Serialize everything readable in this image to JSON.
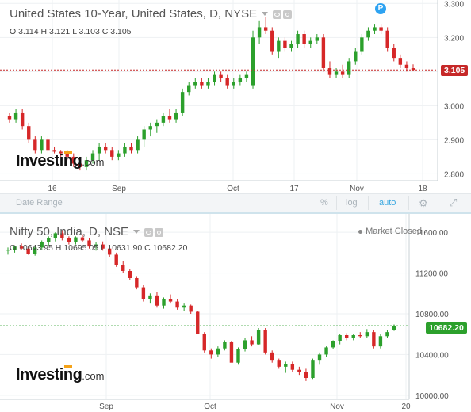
{
  "top": {
    "title": "United States 10-Year, United States, D, NYSE",
    "ohlc": "O 3.114  H 3.121  L 3.103  C 3.105",
    "price_tag": "3.105",
    "badge": "P",
    "y_ticks": [
      "3.300",
      "3.200",
      "3.100",
      "3.000",
      "2.900",
      "2.800"
    ],
    "x_ticks": [
      "16",
      "Sep",
      "Oct",
      "17",
      "Nov",
      "18"
    ],
    "colors": {
      "up": "#2ca02c",
      "down": "#d62728",
      "price_line": "#c62828"
    },
    "candles": [
      [
        2.97,
        2.98,
        2.95,
        2.96
      ],
      [
        2.96,
        2.99,
        2.95,
        2.98
      ],
      [
        2.98,
        2.99,
        2.93,
        2.94
      ],
      [
        2.94,
        2.95,
        2.89,
        2.9
      ],
      [
        2.9,
        2.91,
        2.86,
        2.87
      ],
      [
        2.87,
        2.91,
        2.86,
        2.9
      ],
      [
        2.9,
        2.91,
        2.86,
        2.87
      ],
      [
        2.87,
        2.88,
        2.86,
        2.865
      ],
      [
        2.865,
        2.87,
        2.85,
        2.86
      ],
      [
        2.86,
        2.87,
        2.84,
        2.85
      ],
      [
        2.85,
        2.86,
        2.82,
        2.83
      ],
      [
        2.83,
        2.84,
        2.81,
        2.82
      ],
      [
        2.82,
        2.85,
        2.81,
        2.84
      ],
      [
        2.84,
        2.87,
        2.83,
        2.86
      ],
      [
        2.86,
        2.89,
        2.84,
        2.88
      ],
      [
        2.88,
        2.89,
        2.86,
        2.87
      ],
      [
        2.87,
        2.88,
        2.84,
        2.85
      ],
      [
        2.85,
        2.87,
        2.84,
        2.86
      ],
      [
        2.86,
        2.89,
        2.85,
        2.88
      ],
      [
        2.88,
        2.89,
        2.86,
        2.87
      ],
      [
        2.87,
        2.91,
        2.86,
        2.9
      ],
      [
        2.9,
        2.94,
        2.88,
        2.93
      ],
      [
        2.93,
        2.95,
        2.91,
        2.94
      ],
      [
        2.94,
        2.96,
        2.92,
        2.95
      ],
      [
        2.95,
        2.98,
        2.94,
        2.97
      ],
      [
        2.97,
        2.99,
        2.95,
        2.96
      ],
      [
        2.96,
        2.99,
        2.95,
        2.98
      ],
      [
        2.98,
        3.05,
        2.97,
        3.04
      ],
      [
        3.04,
        3.07,
        3.03,
        3.06
      ],
      [
        3.06,
        3.08,
        3.05,
        3.07
      ],
      [
        3.07,
        3.08,
        3.05,
        3.06
      ],
      [
        3.06,
        3.08,
        3.05,
        3.07
      ],
      [
        3.07,
        3.1,
        3.06,
        3.09
      ],
      [
        3.09,
        3.1,
        3.07,
        3.08
      ],
      [
        3.08,
        3.09,
        3.05,
        3.06
      ],
      [
        3.06,
        3.08,
        3.05,
        3.07
      ],
      [
        3.07,
        3.09,
        3.06,
        3.08
      ],
      [
        3.08,
        3.1,
        3.07,
        3.09
      ],
      [
        3.06,
        3.22,
        3.05,
        3.2
      ],
      [
        3.2,
        3.25,
        3.18,
        3.23
      ],
      [
        3.23,
        3.26,
        3.21,
        3.22
      ],
      [
        3.22,
        3.23,
        3.15,
        3.16
      ],
      [
        3.16,
        3.2,
        3.14,
        3.19
      ],
      [
        3.19,
        3.2,
        3.16,
        3.17
      ],
      [
        3.17,
        3.19,
        3.16,
        3.18
      ],
      [
        3.18,
        3.22,
        3.17,
        3.21
      ],
      [
        3.21,
        3.22,
        3.17,
        3.18
      ],
      [
        3.18,
        3.2,
        3.17,
        3.19
      ],
      [
        3.19,
        3.21,
        3.18,
        3.2
      ],
      [
        3.2,
        3.21,
        3.1,
        3.11
      ],
      [
        3.11,
        3.13,
        3.08,
        3.09
      ],
      [
        3.09,
        3.11,
        3.08,
        3.1
      ],
      [
        3.1,
        3.12,
        3.08,
        3.09
      ],
      [
        3.09,
        3.14,
        3.08,
        3.13
      ],
      [
        3.13,
        3.17,
        3.12,
        3.16
      ],
      [
        3.16,
        3.21,
        3.15,
        3.2
      ],
      [
        3.2,
        3.23,
        3.19,
        3.22
      ],
      [
        3.22,
        3.24,
        3.21,
        3.23
      ],
      [
        3.23,
        3.24,
        3.21,
        3.22
      ],
      [
        3.22,
        3.23,
        3.16,
        3.17
      ],
      [
        3.17,
        3.18,
        3.13,
        3.14
      ],
      [
        3.14,
        3.15,
        3.11,
        3.12
      ],
      [
        3.12,
        3.13,
        3.1,
        3.11
      ],
      [
        3.11,
        3.121,
        3.103,
        3.105
      ]
    ]
  },
  "toolbar": {
    "date_range": "Date Range",
    "percent": "%",
    "log": "log",
    "auto": "auto"
  },
  "bottom": {
    "title": "Nifty 50, India, D, NSE",
    "ohlc": "O 10643.95  H 10695.05  L 10631.90  C 10682.20",
    "market_status": "Market Closed",
    "price_tag": "10682.20",
    "y_ticks": [
      "11600.00",
      "11200.00",
      "10800.00",
      "10400.00",
      "10000.00"
    ],
    "x_ticks": [
      "Sep",
      "Oct",
      "Nov",
      "20"
    ],
    "colors": {
      "up": "#2ca02c",
      "down": "#d62728",
      "price_line": "#2ca02c"
    },
    "candles": [
      [
        11420,
        11450,
        11380,
        11430
      ],
      [
        11430,
        11470,
        11400,
        11460
      ],
      [
        11460,
        11490,
        11430,
        11440
      ],
      [
        11440,
        11460,
        11380,
        11390
      ],
      [
        11390,
        11460,
        11370,
        11450
      ],
      [
        11450,
        11520,
        11430,
        11500
      ],
      [
        11500,
        11560,
        11470,
        11540
      ],
      [
        11540,
        11600,
        11510,
        11590
      ],
      [
        11590,
        11620,
        11520,
        11540
      ],
      [
        11540,
        11560,
        11480,
        11500
      ],
      [
        11500,
        11560,
        11480,
        11550
      ],
      [
        11550,
        11580,
        11500,
        11520
      ],
      [
        11520,
        11540,
        11440,
        11460
      ],
      [
        11460,
        11500,
        11420,
        11480
      ],
      [
        11480,
        11510,
        11420,
        11440
      ],
      [
        11440,
        11460,
        11360,
        11380
      ],
      [
        11380,
        11400,
        11260,
        11280
      ],
      [
        11280,
        11320,
        11200,
        11220
      ],
      [
        11220,
        11240,
        11130,
        11150
      ],
      [
        11150,
        11170,
        11040,
        11060
      ],
      [
        11060,
        11080,
        10920,
        10940
      ],
      [
        10940,
        11000,
        10900,
        10980
      ],
      [
        10980,
        11010,
        10860,
        10880
      ],
      [
        10880,
        10960,
        10850,
        10940
      ],
      [
        10940,
        10990,
        10900,
        10920
      ],
      [
        10920,
        10940,
        10840,
        10860
      ],
      [
        10860,
        10900,
        10830,
        10880
      ],
      [
        10880,
        10890,
        10800,
        10820
      ],
      [
        10820,
        10830,
        10680,
        10600
      ],
      [
        10600,
        10620,
        10420,
        10440
      ],
      [
        10440,
        10460,
        10360,
        10400
      ],
      [
        10400,
        10480,
        10380,
        10460
      ],
      [
        10460,
        10540,
        10440,
        10520
      ],
      [
        10520,
        10530,
        10380,
        10320
      ],
      [
        10320,
        10470,
        10300,
        10450
      ],
      [
        10450,
        10560,
        10430,
        10540
      ],
      [
        10540,
        10580,
        10480,
        10500
      ],
      [
        10500,
        10660,
        10490,
        10640
      ],
      [
        10640,
        10660,
        10400,
        10420
      ],
      [
        10420,
        10440,
        10320,
        10340
      ],
      [
        10340,
        10360,
        10260,
        10280
      ],
      [
        10280,
        10330,
        10220,
        10310
      ],
      [
        10310,
        10330,
        10230,
        10250
      ],
      [
        10250,
        10280,
        10200,
        10230
      ],
      [
        10230,
        10260,
        10140,
        10170
      ],
      [
        10170,
        10360,
        10160,
        10340
      ],
      [
        10340,
        10420,
        10300,
        10400
      ],
      [
        10400,
        10480,
        10380,
        10470
      ],
      [
        10470,
        10540,
        10450,
        10530
      ],
      [
        10530,
        10600,
        10500,
        10590
      ],
      [
        10590,
        10610,
        10540,
        10560
      ],
      [
        10560,
        10600,
        10540,
        10590
      ],
      [
        10590,
        10620,
        10560,
        10580
      ],
      [
        10580,
        10650,
        10560,
        10620
      ],
      [
        10620,
        10640,
        10460,
        10480
      ],
      [
        10480,
        10600,
        10460,
        10580
      ],
      [
        10580,
        10640,
        10560,
        10620
      ],
      [
        10643.95,
        10695.05,
        10631.9,
        10682.2
      ]
    ]
  }
}
